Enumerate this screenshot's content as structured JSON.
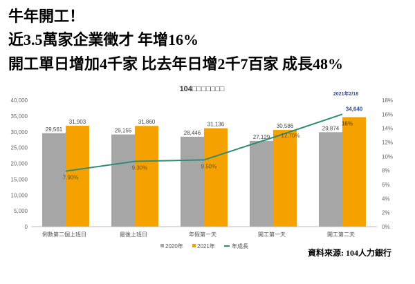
{
  "headline": [
    "牛年開工！",
    "近3.5萬家企業徵才  年增16%",
    "開工單日增加4千家   比去年日增2千7百家  成長48%"
  ],
  "source": "資料來源: 104人力銀行",
  "colors": {
    "s2020": "#A6A6A6",
    "s2021": "#F5A100",
    "growth": "#2E8B7A",
    "highlight": "#2F4A9A"
  },
  "chart_data": {
    "type": "bar",
    "title": "104□□□□□□□",
    "annotation": "2021年2/18",
    "categories": [
      "倒數第二個上班日",
      "最後上班日",
      "年假第一天",
      "開工第一天",
      "開工第二天"
    ],
    "series": [
      {
        "name": "2020年",
        "values": [
          29561,
          29155,
          28446,
          27129,
          29874
        ],
        "labels": [
          "29,561",
          "29,155",
          "28,446",
          "27,129",
          "29,874"
        ]
      },
      {
        "name": "2021年",
        "values": [
          31903,
          31860,
          31136,
          30586,
          34640
        ],
        "labels": [
          "31,903",
          "31,860",
          "31,136",
          "30,586",
          "34,640"
        ]
      },
      {
        "name": "年成長",
        "axis": "right",
        "values": [
          7.9,
          9.3,
          9.5,
          12.7,
          16
        ],
        "labels": [
          "7.90%",
          "9.30%",
          "9.50%",
          "12.70%",
          "16%"
        ]
      }
    ],
    "ylim": [
      0,
      40000
    ],
    "y2lim": [
      0,
      18
    ],
    "yticks": [
      "0",
      "5,000",
      "10,000",
      "15,000",
      "20,000",
      "25,000",
      "30,000",
      "35,000",
      "40,000"
    ],
    "y2ticks": [
      "0%",
      "2%",
      "4%",
      "6%",
      "8%",
      "10%",
      "12%",
      "14%",
      "16%",
      "18%"
    ],
    "legend": "bottom"
  }
}
